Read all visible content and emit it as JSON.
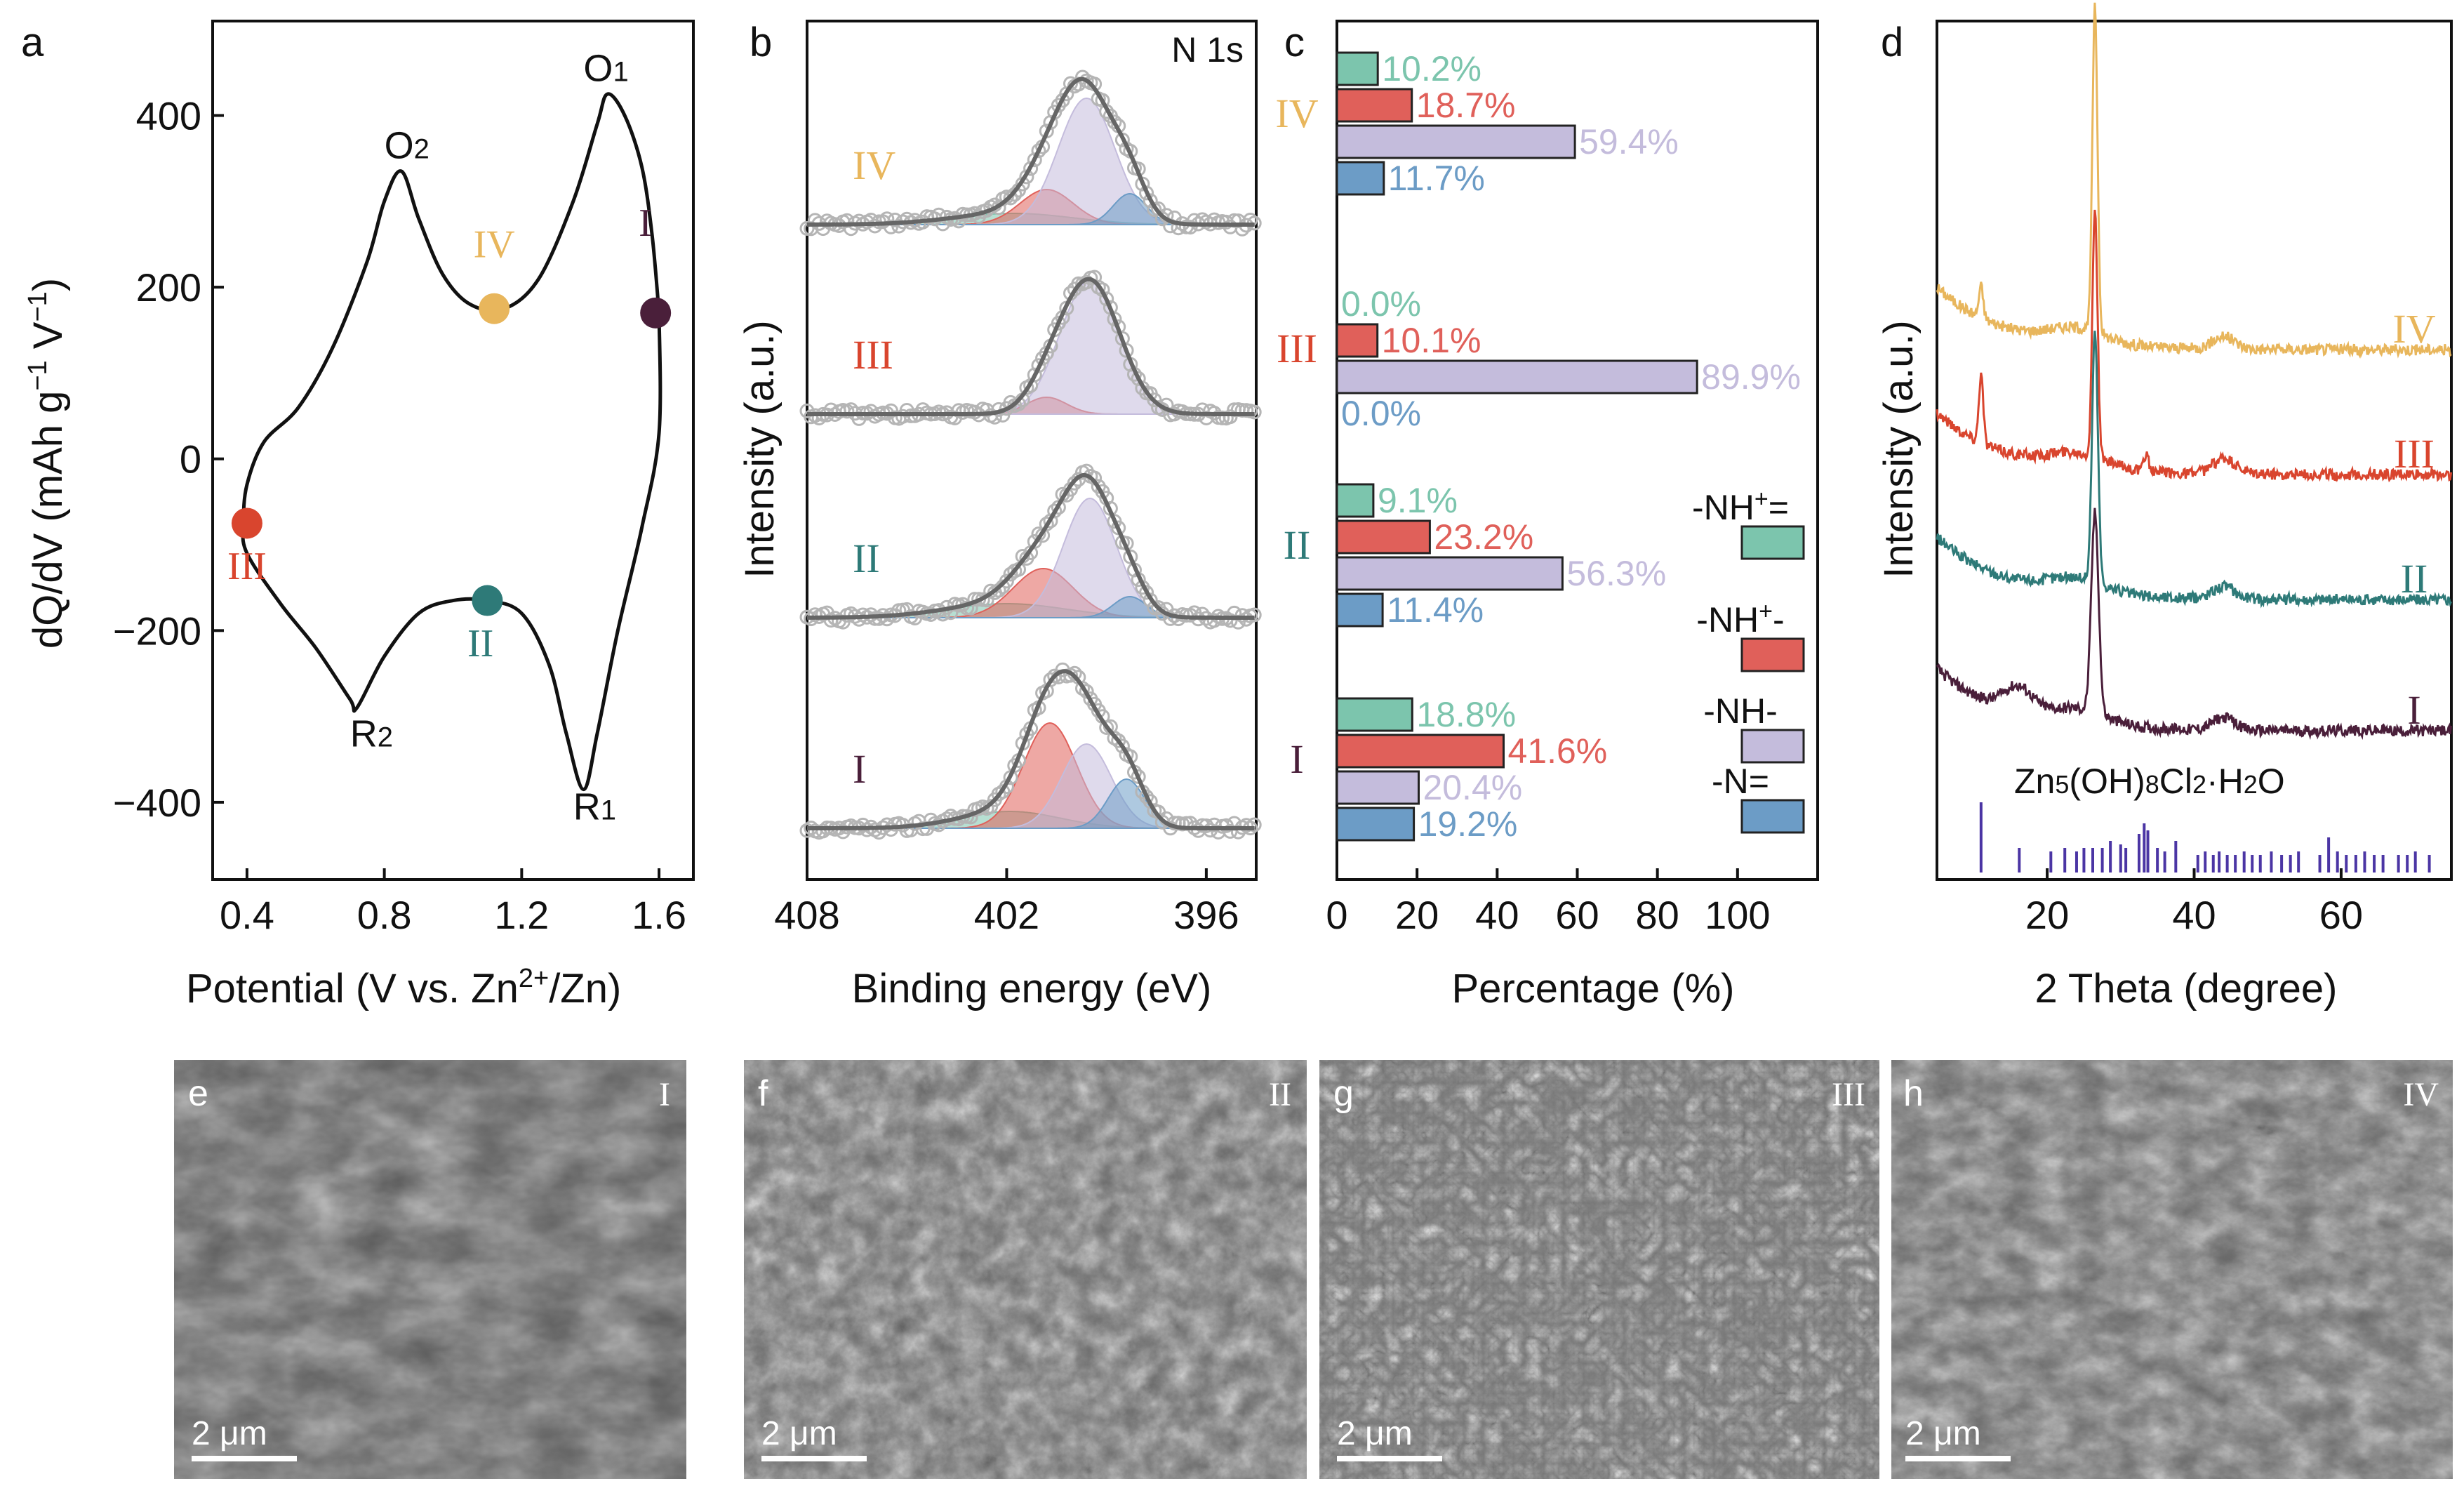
{
  "panel_letters": [
    "a",
    "b",
    "c",
    "d",
    "e",
    "f",
    "g",
    "h"
  ],
  "colors": {
    "I": "#4a1f3a",
    "II": "#2e7a78",
    "III": "#d9452e",
    "IV": "#e8b65c",
    "nh_plus_eq": "#7cc5ad",
    "nh_plus": "#e0605a",
    "nh": "#c4bcdc",
    "n_eq": "#6c9cc6",
    "ref": "#4b35a4",
    "xps_fit": "#666666",
    "xps_raw": "#bdbdbd"
  },
  "chart_data": [
    {
      "type": "line",
      "panel": "a",
      "xlabel_pre": "Potential (V vs. Zn",
      "xlabel_sup": "2+",
      "xlabel_post": "/Zn)",
      "ylabel_pre": "dQ/dV (mAh g",
      "ylabel_sup1": "−1",
      "ylabel_mid": "V",
      "ylabel_sup2": "−1",
      "ylabel_post": ")",
      "xlim": [
        0.3,
        1.7
      ],
      "ylim": [
        -490,
        510
      ],
      "xticks": [
        {
          "v": 0.4,
          "t": "0.4"
        },
        {
          "v": 0.8,
          "t": "0.8"
        },
        {
          "v": 1.2,
          "t": "1.2"
        },
        {
          "v": 1.6,
          "t": "1.6"
        }
      ],
      "yticks": [
        {
          "v": 400,
          "t": "400"
        },
        {
          "v": 200,
          "t": "200"
        },
        {
          "v": 0,
          "t": "0"
        },
        {
          "v": -200,
          "t": "−200"
        },
        {
          "v": -400,
          "t": "−400"
        }
      ],
      "curve": [
        [
          1.6,
          170
        ],
        [
          1.58,
          260
        ],
        [
          1.55,
          340
        ],
        [
          1.5,
          400
        ],
        [
          1.45,
          425
        ],
        [
          1.42,
          390
        ],
        [
          1.35,
          300
        ],
        [
          1.25,
          210
        ],
        [
          1.15,
          175
        ],
        [
          1.05,
          180
        ],
        [
          0.97,
          215
        ],
        [
          0.9,
          280
        ],
        [
          0.85,
          335
        ],
        [
          0.8,
          300
        ],
        [
          0.75,
          230
        ],
        [
          0.65,
          130
        ],
        [
          0.55,
          60
        ],
        [
          0.45,
          20
        ],
        [
          0.4,
          -30
        ],
        [
          0.39,
          -75
        ],
        [
          0.4,
          -110
        ],
        [
          0.5,
          -170
        ],
        [
          0.6,
          -220
        ],
        [
          0.7,
          -280
        ],
        [
          0.72,
          -290
        ],
        [
          0.8,
          -230
        ],
        [
          0.9,
          -180
        ],
        [
          1.0,
          -165
        ],
        [
          1.1,
          -165
        ],
        [
          1.2,
          -180
        ],
        [
          1.28,
          -240
        ],
        [
          1.33,
          -320
        ],
        [
          1.38,
          -385
        ],
        [
          1.42,
          -320
        ],
        [
          1.48,
          -200
        ],
        [
          1.55,
          -80
        ],
        [
          1.6,
          30
        ],
        [
          1.6,
          170
        ]
      ],
      "points": [
        {
          "label": "I",
          "x": 1.59,
          "y": 170,
          "color": "#4a1f3a",
          "lx": 1.56,
          "ly": 260
        },
        {
          "label": "II",
          "x": 1.1,
          "y": -165,
          "color": "#2e7a78",
          "lx": 1.08,
          "ly": -230
        },
        {
          "label": "III",
          "x": 0.4,
          "y": -75,
          "color": "#d9452e",
          "lx": 0.4,
          "ly": -140
        },
        {
          "label": "IV",
          "x": 1.12,
          "y": 175,
          "color": "#e8b65c",
          "lx": 1.12,
          "ly": 235
        }
      ],
      "annotations": [
        {
          "base": "O",
          "sub": "1",
          "x": 1.38,
          "y": 440
        },
        {
          "base": "O",
          "sub": "2",
          "x": 0.8,
          "y": 350
        },
        {
          "base": "R",
          "sub": "2",
          "x": 0.7,
          "y": -335
        },
        {
          "base": "R",
          "sub": "1",
          "x": 1.35,
          "y": -420
        }
      ]
    },
    {
      "type": "line",
      "panel": "b",
      "tag": "N 1s",
      "xlabel": "Binding energy (eV)",
      "ylabel": "Intensity (a.u.)",
      "xlim": [
        408,
        394.5
      ],
      "xticks": [
        {
          "v": 408,
          "t": "408"
        },
        {
          "v": 402,
          "t": "402"
        },
        {
          "v": 396,
          "t": "396"
        }
      ],
      "series": [
        {
          "label": "IV",
          "color": "#e8b65c",
          "components": [
            {
              "c": 401.8,
              "h": 0.08,
              "w": 1.8,
              "color": "#7cc5ad"
            },
            {
              "c": 400.8,
              "h": 0.25,
              "w": 0.8,
              "color": "#e0605a"
            },
            {
              "c": 399.6,
              "h": 0.9,
              "w": 0.85,
              "color": "#c4bcdc"
            },
            {
              "c": 398.3,
              "h": 0.22,
              "w": 0.5,
              "color": "#6c9cc6"
            }
          ]
        },
        {
          "label": "III",
          "color": "#d9452e",
          "components": [
            {
              "c": 400.8,
              "h": 0.12,
              "w": 0.6,
              "color": "#e0605a"
            },
            {
              "c": 399.5,
              "h": 0.95,
              "w": 0.9,
              "color": "#c4bcdc"
            }
          ]
        },
        {
          "label": "II",
          "color": "#2e7a78",
          "components": [
            {
              "c": 402.0,
              "h": 0.1,
              "w": 1.8,
              "color": "#7cc5ad"
            },
            {
              "c": 400.9,
              "h": 0.35,
              "w": 0.9,
              "color": "#e0605a"
            },
            {
              "c": 399.5,
              "h": 0.85,
              "w": 0.8,
              "color": "#c4bcdc"
            },
            {
              "c": 398.3,
              "h": 0.15,
              "w": 0.5,
              "color": "#6c9cc6"
            }
          ]
        },
        {
          "label": "I",
          "color": "#4a1f3a",
          "components": [
            {
              "c": 401.9,
              "h": 0.12,
              "w": 1.5,
              "color": "#7cc5ad"
            },
            {
              "c": 400.7,
              "h": 0.75,
              "w": 0.8,
              "color": "#e0605a"
            },
            {
              "c": 399.6,
              "h": 0.6,
              "w": 0.75,
              "color": "#c4bcdc"
            },
            {
              "c": 398.4,
              "h": 0.35,
              "w": 0.55,
              "color": "#6c9cc6"
            }
          ]
        }
      ]
    },
    {
      "type": "bar",
      "panel": "c",
      "xlabel": "Percentage (%)",
      "xlim": [
        0,
        120
      ],
      "xticks": [
        {
          "v": 0,
          "t": "0"
        },
        {
          "v": 20,
          "t": "20"
        },
        {
          "v": 40,
          "t": "40"
        },
        {
          "v": 60,
          "t": "60"
        },
        {
          "v": 80,
          "t": "80"
        },
        {
          "v": 100,
          "t": "100"
        }
      ],
      "groups": [
        {
          "label": "IV",
          "color": "#e8b65c",
          "values": [
            10.2,
            18.7,
            59.4,
            11.7
          ],
          "texts": [
            "10.2%",
            "18.7%",
            "59.4%",
            "11.7%"
          ]
        },
        {
          "label": "III",
          "color": "#d9452e",
          "values": [
            0.0,
            10.1,
            89.9,
            0.0
          ],
          "texts": [
            "0.0%",
            "10.1%",
            "89.9%",
            "0.0%"
          ]
        },
        {
          "label": "II",
          "color": "#2e7a78",
          "values": [
            9.1,
            23.2,
            56.3,
            11.4
          ],
          "texts": [
            "9.1%",
            "23.2%",
            "56.3%",
            "11.4%"
          ]
        },
        {
          "label": "I",
          "color": "#4a1f3a",
          "values": [
            18.8,
            41.6,
            20.4,
            19.2
          ],
          "texts": [
            "18.8%",
            "41.6%",
            "20.4%",
            "19.2%"
          ]
        }
      ],
      "series_colors": [
        "#7cc5ad",
        "#e0605a",
        "#c4bcdc",
        "#6c9cc6"
      ],
      "legend": [
        {
          "pre": "-NH",
          "sup": "+",
          "post": "=",
          "color": "#7cc5ad"
        },
        {
          "pre": "-NH",
          "sup": "+",
          "post": "-",
          "color": "#e0605a"
        },
        {
          "pre": "-NH-",
          "sup": "",
          "post": "",
          "color": "#c4bcdc"
        },
        {
          "pre": "-N=",
          "sup": "",
          "post": "",
          "color": "#6c9cc6"
        }
      ]
    },
    {
      "type": "line",
      "panel": "d",
      "xlabel": "2 Theta (degree)",
      "ylabel": "Intensity (a.u.)",
      "xlim": [
        5,
        75
      ],
      "xticks": [
        {
          "v": 20,
          "t": "20"
        },
        {
          "v": 40,
          "t": "40"
        },
        {
          "v": 60,
          "t": "60"
        }
      ],
      "series": [
        {
          "label": "IV",
          "color": "#e8b65c",
          "offset": 3.1,
          "peaks": [
            {
              "c": 26.5,
              "h": 2.6,
              "w": 0.35
            },
            {
              "c": 11.0,
              "h": 0.25,
              "w": 0.3
            },
            {
              "c": 44.0,
              "h": 0.1,
              "w": 1.5
            }
          ]
        },
        {
          "label": "III",
          "color": "#d9452e",
          "offset": 2.1,
          "peaks": [
            {
              "c": 26.5,
              "h": 2.0,
              "w": 0.35
            },
            {
              "c": 11.0,
              "h": 0.55,
              "w": 0.3
            },
            {
              "c": 33.5,
              "h": 0.15,
              "w": 0.3
            },
            {
              "c": 44.0,
              "h": 0.12,
              "w": 1.5
            }
          ]
        },
        {
          "label": "II",
          "color": "#2e7a78",
          "offset": 1.1,
          "peaks": [
            {
              "c": 26.5,
              "h": 2.0,
              "w": 0.4
            },
            {
              "c": 44.0,
              "h": 0.1,
              "w": 1.5
            }
          ]
        },
        {
          "label": "I",
          "color": "#4a1f3a",
          "offset": 0.05,
          "peaks": [
            {
              "c": 26.5,
              "h": 1.6,
              "w": 0.5
            },
            {
              "c": 16,
              "h": 0.2,
              "w": 2
            },
            {
              "c": 44.0,
              "h": 0.1,
              "w": 1.5
            }
          ]
        }
      ],
      "reference": {
        "formula": [
          {
            "t": "Zn",
            "s": false
          },
          {
            "t": "5",
            "s": true
          },
          {
            "t": "(OH)",
            "s": false
          },
          {
            "t": "8",
            "s": true
          },
          {
            "t": "Cl",
            "s": false
          },
          {
            "t": "2",
            "s": true
          },
          {
            "t": "·H",
            "s": false
          },
          {
            "t": "2",
            "s": true
          },
          {
            "t": "O",
            "s": false
          }
        ],
        "lines": [
          [
            11.0,
            1.0
          ],
          [
            16.2,
            0.35
          ],
          [
            20.5,
            0.3
          ],
          [
            22.4,
            0.35
          ],
          [
            24.0,
            0.3
          ],
          [
            25.0,
            0.35
          ],
          [
            26.2,
            0.35
          ],
          [
            27.5,
            0.35
          ],
          [
            28.6,
            0.45
          ],
          [
            30.0,
            0.4
          ],
          [
            30.7,
            0.35
          ],
          [
            32.5,
            0.55
          ],
          [
            33.2,
            0.7
          ],
          [
            33.7,
            0.6
          ],
          [
            35.0,
            0.35
          ],
          [
            36.0,
            0.3
          ],
          [
            37.5,
            0.45
          ],
          [
            40.5,
            0.25
          ],
          [
            41.5,
            0.3
          ],
          [
            42.6,
            0.25
          ],
          [
            43.4,
            0.3
          ],
          [
            44.5,
            0.25
          ],
          [
            45.6,
            0.25
          ],
          [
            46.8,
            0.3
          ],
          [
            47.9,
            0.25
          ],
          [
            49.0,
            0.25
          ],
          [
            50.5,
            0.3
          ],
          [
            51.9,
            0.25
          ],
          [
            53.1,
            0.25
          ],
          [
            54.2,
            0.3
          ],
          [
            57.1,
            0.25
          ],
          [
            58.3,
            0.5
          ],
          [
            59.5,
            0.3
          ],
          [
            60.7,
            0.25
          ],
          [
            62.0,
            0.25
          ],
          [
            63.2,
            0.3
          ],
          [
            64.5,
            0.25
          ],
          [
            65.7,
            0.25
          ],
          [
            67.8,
            0.25
          ],
          [
            69.0,
            0.25
          ],
          [
            70.1,
            0.3
          ],
          [
            72.0,
            0.25
          ]
        ]
      }
    }
  ],
  "sem_panels": [
    {
      "letter": "e",
      "stage": "I",
      "scale": "2 μm"
    },
    {
      "letter": "f",
      "stage": "II",
      "scale": "2 μm"
    },
    {
      "letter": "g",
      "stage": "III",
      "scale": "2 μm"
    },
    {
      "letter": "h",
      "stage": "IV",
      "scale": "2 μm"
    }
  ]
}
